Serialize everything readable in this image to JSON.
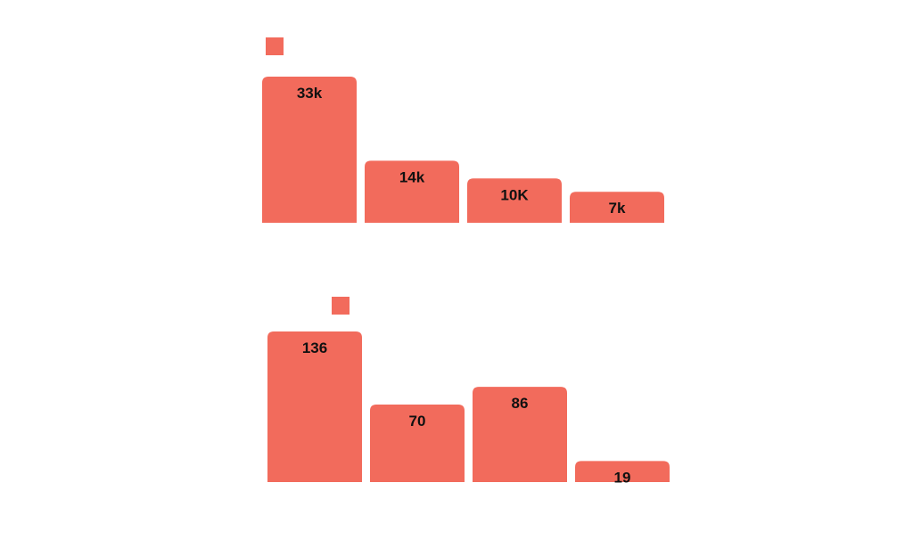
{
  "colors": {
    "bar": "#f26b5c",
    "value_label": "#111111",
    "background": "#ffffff"
  },
  "chart_data": [
    {
      "type": "bar",
      "legend": {
        "marker_color": "#f26b5c",
        "label": "",
        "position": "top-left"
      },
      "categories": [
        "",
        "",
        "",
        ""
      ],
      "series": [
        {
          "values": [
            33000,
            14000,
            10000,
            7000
          ]
        }
      ],
      "data_labels": [
        "33k",
        "14k",
        "10K",
        "7k"
      ],
      "ylim": [
        0,
        33000
      ],
      "grid": false
    },
    {
      "type": "bar",
      "legend": {
        "marker_color": "#f26b5c",
        "label": "",
        "position": "top-left"
      },
      "categories": [
        "",
        "",
        "",
        ""
      ],
      "series": [
        {
          "values": [
            136,
            70,
            86,
            19
          ]
        }
      ],
      "data_labels": [
        "136",
        "70",
        "86",
        "19"
      ],
      "ylim": [
        0,
        136
      ],
      "grid": false
    }
  ]
}
